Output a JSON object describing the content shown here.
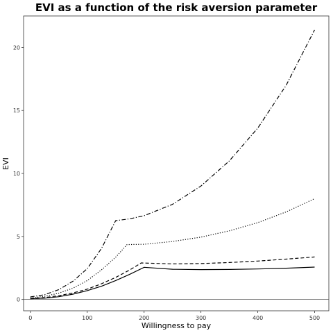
{
  "chart_data": {
    "type": "line",
    "title": "EVI as a function of the risk aversion parameter",
    "xlabel": "Willingness to pay",
    "ylabel": "EVI",
    "xlim": [
      -12,
      525
    ],
    "ylim": [
      -0.9,
      22.5
    ],
    "xticks": [
      0,
      100,
      200,
      300,
      400,
      500
    ],
    "xtick_labels": [
      "0",
      "100",
      "200",
      "300",
      "400",
      "500"
    ],
    "yticks": [
      0,
      5,
      10,
      15,
      20
    ],
    "ytick_labels": [
      "0",
      "5",
      "10",
      "15",
      "20"
    ],
    "zero_line": true,
    "grid": false,
    "series": [
      {
        "dash": "solid",
        "x": [
          0,
          25,
          50,
          75,
          100,
          125,
          150,
          175,
          200,
          250,
          300,
          350,
          400,
          450,
          500
        ],
        "y": [
          0.05,
          0.1,
          0.22,
          0.42,
          0.7,
          1.05,
          1.5,
          2.0,
          2.55,
          2.4,
          2.37,
          2.38,
          2.42,
          2.48,
          2.57
        ]
      },
      {
        "dash": "dashed",
        "x": [
          0,
          25,
          50,
          75,
          100,
          125,
          150,
          175,
          195,
          250,
          300,
          350,
          400,
          450,
          500
        ],
        "y": [
          0.08,
          0.15,
          0.3,
          0.52,
          0.82,
          1.25,
          1.75,
          2.35,
          2.9,
          2.82,
          2.85,
          2.93,
          3.05,
          3.2,
          3.37
        ]
      },
      {
        "dash": "dotted",
        "x": [
          0,
          25,
          50,
          75,
          100,
          125,
          150,
          170,
          200,
          250,
          300,
          350,
          400,
          450,
          500
        ],
        "y": [
          0.12,
          0.25,
          0.5,
          0.9,
          1.5,
          2.35,
          3.35,
          4.35,
          4.38,
          4.6,
          4.95,
          5.45,
          6.1,
          6.95,
          8.0
        ]
      },
      {
        "dash": "dashdot",
        "x": [
          0,
          25,
          50,
          75,
          100,
          125,
          150,
          175,
          200,
          250,
          300,
          350,
          400,
          450,
          500
        ],
        "y": [
          0.2,
          0.38,
          0.78,
          1.45,
          2.45,
          4.05,
          6.25,
          6.4,
          6.65,
          7.55,
          9.0,
          11.0,
          13.6,
          17.0,
          21.4
        ]
      }
    ]
  }
}
